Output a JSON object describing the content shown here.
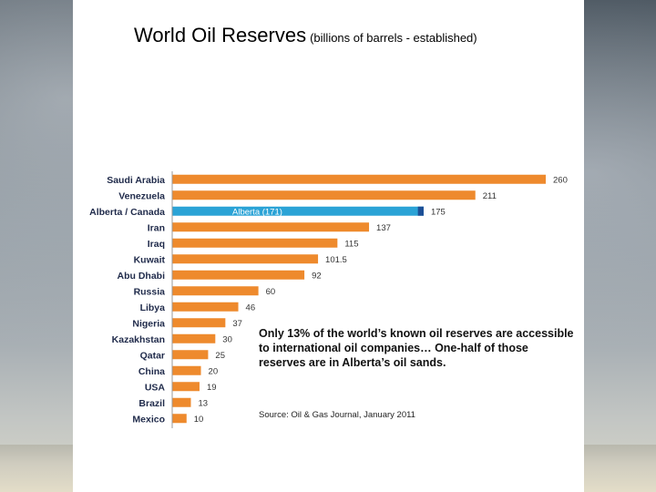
{
  "title": "World Oil Reserves",
  "subtitle": "(billions of barrels - established)",
  "note": "Only 13% of the world’s known oil reserves are accessible to international oil companies… One-half of those reserves are in Alberta’s oil sands.",
  "source": "Source: Oil & Gas Journal, January 2011",
  "colors": {
    "bar": "#ee8a2d",
    "highlight": "#2ba3d6",
    "highlight_cap": "#1c4f96"
  },
  "chart_data": {
    "type": "bar",
    "orientation": "horizontal",
    "categories": [
      "Saudi Arabia",
      "Venezuela",
      "Alberta / Canada",
      "Iran",
      "Iraq",
      "Kuwait",
      "Abu Dhabi",
      "Russia",
      "Libya",
      "Nigeria",
      "Kazakhstan",
      "Qatar",
      "China",
      "USA",
      "Brazil",
      "Mexico"
    ],
    "values": [
      260,
      211,
      175,
      137,
      115,
      101.5,
      92,
      60,
      46,
      37,
      30,
      25,
      20,
      19,
      13,
      10
    ],
    "value_labels": [
      "260",
      "211",
      "175",
      "137",
      "115",
      "101.5",
      "92",
      "60",
      "46",
      "37",
      "30",
      "25",
      "20",
      "19",
      "13",
      "10"
    ],
    "highlight": {
      "category": "Alberta / Canada",
      "segment_value": 171,
      "segment_label": "Alberta (171)"
    },
    "xlim": [
      0,
      260
    ],
    "grid": false,
    "legend": false
  }
}
